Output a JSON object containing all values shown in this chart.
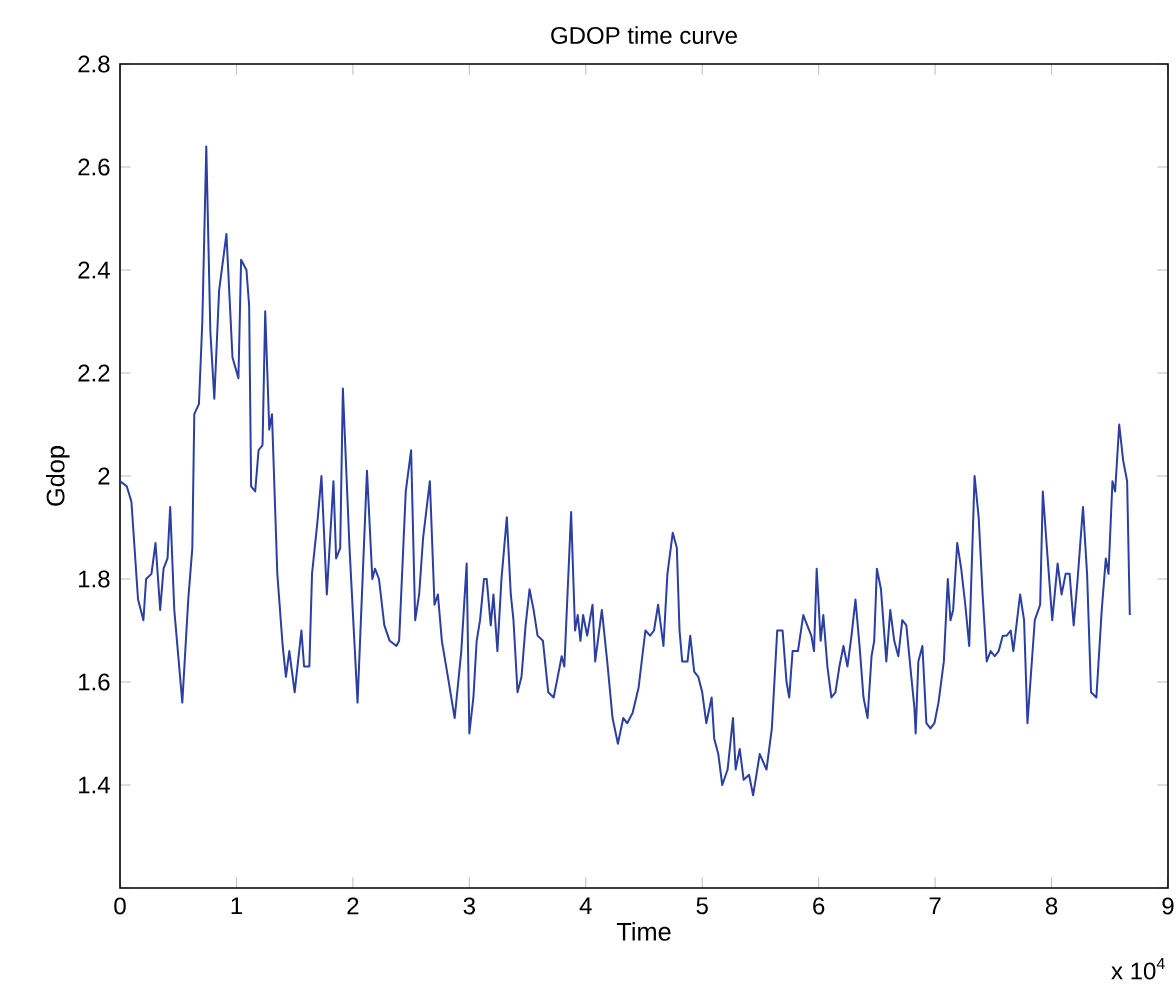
{
  "chart_data": {
    "type": "line",
    "title": "GDOP time curve",
    "xlabel": "Time",
    "ylabel": "Gdop",
    "annotations": [
      "x 10$^{4}$"
    ],
    "xlim": [
      0,
      9
    ],
    "ylim": [
      1.2,
      2.8
    ],
    "xticks": [
      0,
      1,
      2,
      3,
      4,
      5,
      6,
      7,
      8,
      9
    ],
    "yticks": [
      {
        "value": 1.2,
        "label": null
      },
      1.4,
      1.6,
      1.8,
      2,
      2.2,
      2.4,
      2.6,
      2.8
    ],
    "grid": false,
    "legend": false,
    "marker": "none",
    "line_style": "solid",
    "series": [
      {
        "color": "#2a3f9f",
        "x": [
          0,
          0.058,
          0.098,
          0.155,
          0.201,
          0.224,
          0.27,
          0.305,
          0.345,
          0.374,
          0.408,
          0.431,
          0.466,
          0.535,
          0.586,
          0.621,
          0.638,
          0.678,
          0.707,
          0.741,
          0.776,
          0.81,
          0.851,
          0.914,
          0.966,
          1.017,
          1.04,
          1.086,
          1.109,
          1.126,
          1.161,
          1.19,
          1.224,
          1.247,
          1.282,
          1.305,
          1.351,
          1.397,
          1.425,
          1.454,
          1.5,
          1.558,
          1.581,
          1.626,
          1.649,
          1.695,
          1.73,
          1.776,
          1.833,
          1.856,
          1.891,
          1.914,
          1.971,
          2.04,
          2.121,
          2.167,
          2.19,
          2.224,
          2.27,
          2.316,
          2.374,
          2.397,
          2.454,
          2.5,
          2.535,
          2.569,
          2.603,
          2.661,
          2.701,
          2.73,
          2.764,
          2.816,
          2.874,
          2.931,
          2.977,
          3.0,
          3.035,
          3.063,
          3.092,
          3.126,
          3.149,
          3.184,
          3.207,
          3.241,
          3.276,
          3.322,
          3.356,
          3.379,
          3.414,
          3.448,
          3.483,
          3.517,
          3.552,
          3.586,
          3.632,
          3.678,
          3.724,
          3.759,
          3.793,
          3.816,
          3.874,
          3.908,
          3.931,
          3.954,
          3.977,
          4.012,
          4.058,
          4.081,
          4.138,
          4.184,
          4.23,
          4.276,
          4.322,
          4.356,
          4.402,
          4.454,
          4.512,
          4.552,
          4.586,
          4.621,
          4.667,
          4.701,
          4.747,
          4.782,
          4.805,
          4.828,
          4.874,
          4.897,
          4.931,
          4.966,
          5.0,
          5.035,
          5.081,
          5.103,
          5.138,
          5.172,
          5.218,
          5.264,
          5.287,
          5.322,
          5.356,
          5.402,
          5.437,
          5.494,
          5.552,
          5.598,
          5.644,
          5.69,
          5.724,
          5.747,
          5.776,
          5.822,
          5.868,
          5.902,
          5.937,
          5.96,
          5.983,
          6.017,
          6.04,
          6.075,
          6.109,
          6.144,
          6.178,
          6.213,
          6.247,
          6.282,
          6.316,
          6.351,
          6.385,
          6.42,
          6.454,
          6.477,
          6.5,
          6.535,
          6.581,
          6.615,
          6.649,
          6.684,
          6.718,
          6.753,
          6.787,
          6.822,
          6.833,
          6.856,
          6.891,
          6.925,
          6.96,
          6.994,
          7.029,
          7.075,
          7.109,
          7.132,
          7.155,
          7.19,
          7.224,
          7.259,
          7.293,
          7.339,
          7.374,
          7.408,
          7.443,
          7.477,
          7.512,
          7.546,
          7.581,
          7.615,
          7.649,
          7.672,
          7.73,
          7.764,
          7.793,
          7.856,
          7.902,
          7.925,
          7.96,
          8.006,
          8.052,
          8.086,
          8.121,
          8.155,
          8.19,
          8.224,
          8.27,
          8.305,
          8.339,
          8.385,
          8.431,
          8.466,
          8.489,
          8.523,
          8.546,
          8.581,
          8.615,
          8.649,
          8.672
        ],
        "values": [
          1.99,
          1.98,
          1.95,
          1.76,
          1.72,
          1.8,
          1.81,
          1.87,
          1.74,
          1.82,
          1.84,
          1.94,
          1.74,
          1.56,
          1.76,
          1.86,
          2.12,
          2.14,
          2.3,
          2.64,
          2.28,
          2.15,
          2.36,
          2.47,
          2.23,
          2.19,
          2.42,
          2.4,
          2.33,
          1.98,
          1.97,
          2.05,
          2.06,
          2.32,
          2.09,
          2.12,
          1.81,
          1.67,
          1.61,
          1.66,
          1.58,
          1.7,
          1.63,
          1.63,
          1.81,
          1.91,
          2.0,
          1.77,
          1.99,
          1.84,
          1.86,
          2.17,
          1.86,
          1.56,
          2.01,
          1.8,
          1.82,
          1.8,
          1.71,
          1.68,
          1.67,
          1.68,
          1.97,
          2.05,
          1.72,
          1.77,
          1.88,
          1.99,
          1.75,
          1.77,
          1.68,
          1.61,
          1.53,
          1.66,
          1.83,
          1.5,
          1.57,
          1.68,
          1.72,
          1.8,
          1.8,
          1.71,
          1.77,
          1.66,
          1.8,
          1.92,
          1.77,
          1.72,
          1.58,
          1.61,
          1.71,
          1.78,
          1.74,
          1.69,
          1.68,
          1.58,
          1.57,
          1.61,
          1.65,
          1.63,
          1.93,
          1.7,
          1.73,
          1.68,
          1.73,
          1.69,
          1.75,
          1.64,
          1.74,
          1.64,
          1.53,
          1.48,
          1.53,
          1.52,
          1.54,
          1.59,
          1.7,
          1.69,
          1.7,
          1.75,
          1.67,
          1.81,
          1.89,
          1.86,
          1.7,
          1.64,
          1.64,
          1.69,
          1.62,
          1.61,
          1.58,
          1.52,
          1.57,
          1.49,
          1.46,
          1.4,
          1.43,
          1.53,
          1.43,
          1.47,
          1.41,
          1.42,
          1.38,
          1.46,
          1.43,
          1.51,
          1.7,
          1.7,
          1.6,
          1.57,
          1.66,
          1.66,
          1.73,
          1.71,
          1.69,
          1.66,
          1.82,
          1.68,
          1.73,
          1.63,
          1.57,
          1.58,
          1.63,
          1.67,
          1.63,
          1.69,
          1.76,
          1.67,
          1.57,
          1.53,
          1.65,
          1.68,
          1.82,
          1.78,
          1.64,
          1.74,
          1.68,
          1.65,
          1.72,
          1.71,
          1.63,
          1.55,
          1.5,
          1.64,
          1.67,
          1.52,
          1.51,
          1.52,
          1.56,
          1.64,
          1.8,
          1.72,
          1.74,
          1.87,
          1.82,
          1.75,
          1.67,
          2.0,
          1.92,
          1.77,
          1.64,
          1.66,
          1.65,
          1.66,
          1.69,
          1.69,
          1.7,
          1.66,
          1.77,
          1.72,
          1.52,
          1.72,
          1.75,
          1.97,
          1.86,
          1.72,
          1.83,
          1.77,
          1.81,
          1.81,
          1.71,
          1.8,
          1.94,
          1.81,
          1.58,
          1.57,
          1.74,
          1.84,
          1.81,
          1.99,
          1.97,
          2.1,
          2.03,
          1.99,
          1.73
        ]
      }
    ]
  }
}
